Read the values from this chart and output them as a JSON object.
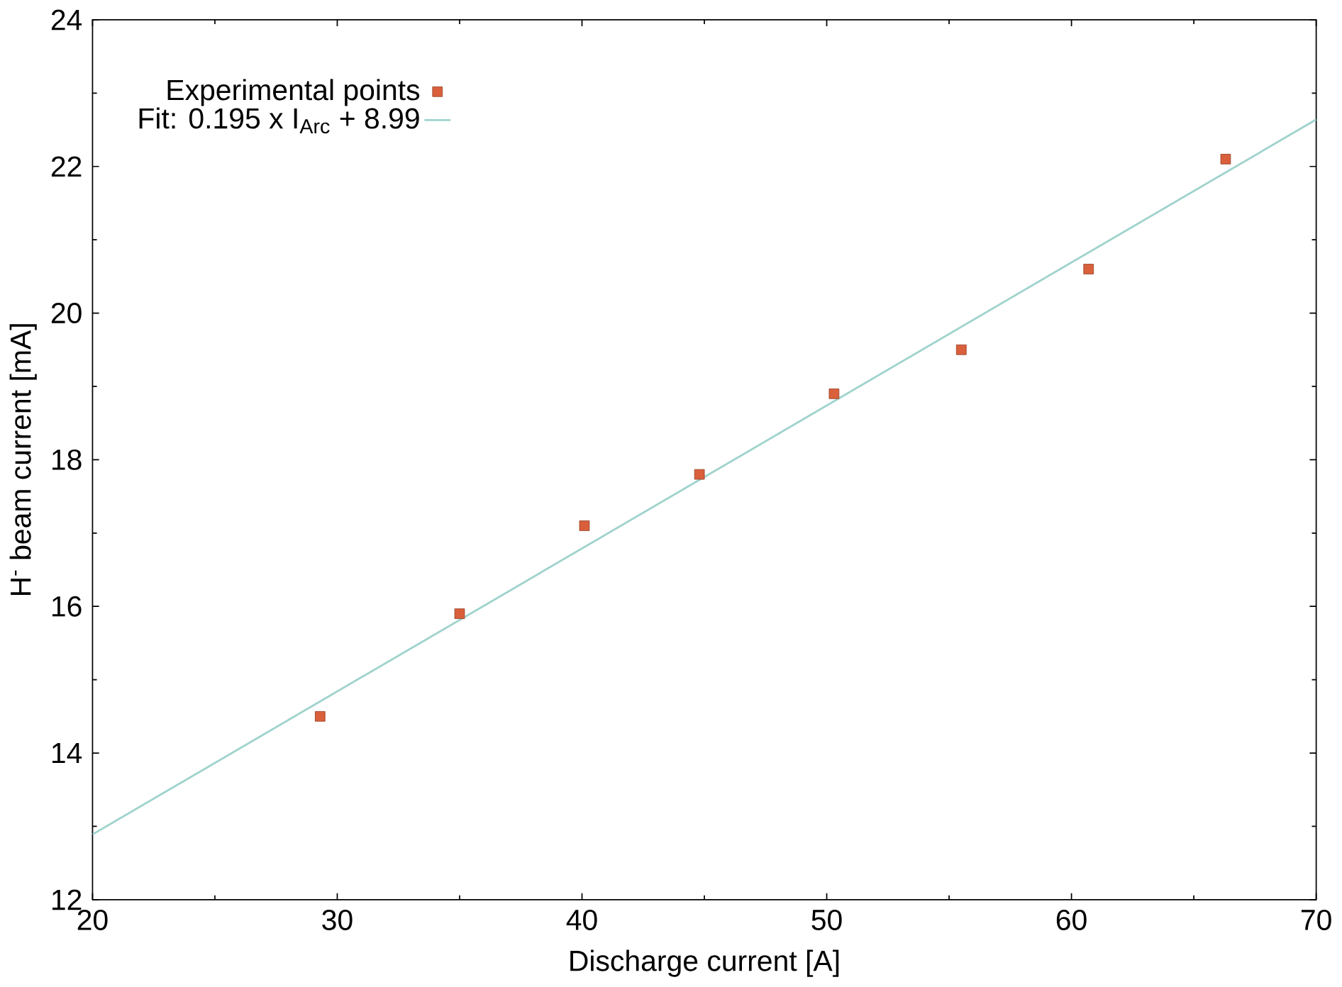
{
  "chart_data": {
    "type": "scatter",
    "xlabel": "Discharge current [A]",
    "ylabel": "H$^{-}$ beam current [mA]",
    "xlim": [
      20,
      70
    ],
    "ylim": [
      12,
      24
    ],
    "xticks": [
      20,
      30,
      40,
      50,
      60,
      70
    ],
    "yticks": [
      12,
      14,
      16,
      18,
      20,
      22,
      24
    ],
    "legend": "top left",
    "series": [
      {
        "name": "Experimental points",
        "marker": "square",
        "color": "#d9603b",
        "x": [
          29.3,
          35.0,
          40.1,
          44.8,
          50.3,
          55.5,
          60.7,
          66.3
        ],
        "values": [
          14.5,
          15.9,
          17.1,
          17.8,
          18.9,
          19.5,
          20.6,
          22.1
        ]
      },
      {
        "name": "Fit: 0.195 x I$_{Arc}$ + 8.99",
        "type": "line",
        "color": "#9fd3cc",
        "line_style": "solid",
        "x": [
          20,
          70
        ],
        "values": [
          12.89,
          22.64
        ]
      }
    ]
  }
}
